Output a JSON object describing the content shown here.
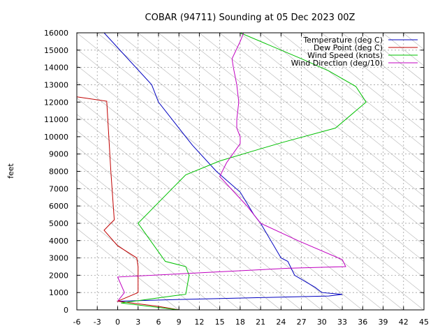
{
  "chart_data": {
    "type": "line",
    "title": "COBAR (94711) Sounding at 05 Dec 2023 00Z",
    "xlabel": "",
    "ylabel": "feet",
    "xlim": [
      -6,
      45
    ],
    "ylim": [
      0,
      16000
    ],
    "x_ticks": [
      -6,
      -3,
      0,
      3,
      6,
      9,
      12,
      15,
      18,
      21,
      24,
      27,
      30,
      33,
      36,
      39,
      42,
      45
    ],
    "y_ticks": [
      0,
      1000,
      2000,
      3000,
      4000,
      5000,
      6000,
      7000,
      8000,
      9000,
      10000,
      11000,
      12000,
      13000,
      14000,
      15000,
      16000
    ],
    "grid": true,
    "legend_position": "top-right",
    "series": [
      {
        "name": "Temperature (deg C)",
        "color": "#0000c0",
        "points": [
          [
            0,
            500
          ],
          [
            9,
            600
          ],
          [
            20,
            700
          ],
          [
            31,
            800
          ],
          [
            33,
            900
          ],
          [
            30,
            1000
          ],
          [
            29,
            1300
          ],
          [
            26,
            2000
          ],
          [
            25,
            2800
          ],
          [
            24,
            3000
          ],
          [
            21,
            5000
          ],
          [
            20,
            5500
          ],
          [
            18,
            6800
          ],
          [
            14.5,
            8000
          ],
          [
            11,
            9500
          ],
          [
            10,
            10000
          ],
          [
            6,
            12000
          ],
          [
            5,
            13000
          ],
          [
            -2,
            16000
          ]
        ]
      },
      {
        "name": "Dew Point (deg C)",
        "color": "#c00000",
        "points": [
          [
            9,
            0
          ],
          [
            6,
            200
          ],
          [
            0,
            500
          ],
          [
            3,
            1000
          ],
          [
            3,
            2000
          ],
          [
            3,
            2500
          ],
          [
            2.8,
            3000
          ],
          [
            0,
            3700
          ],
          [
            -2,
            4600
          ],
          [
            -1,
            5000
          ],
          [
            -0.5,
            5200
          ],
          [
            -1,
            8000
          ],
          [
            -1.6,
            12000
          ],
          [
            -1.6,
            12050
          ],
          [
            -6,
            12300
          ]
        ]
      },
      {
        "name": "Wind Speed (knots)",
        "color": "#00c000",
        "points": [
          [
            9,
            0
          ],
          [
            0.5,
            400
          ],
          [
            8,
            800
          ],
          [
            10,
            900
          ],
          [
            10.5,
            2000
          ],
          [
            10,
            2500
          ],
          [
            7,
            2800
          ],
          [
            3,
            5000
          ],
          [
            10,
            7800
          ],
          [
            15,
            8600
          ],
          [
            21,
            9300
          ],
          [
            24.5,
            9700
          ],
          [
            32,
            10500
          ],
          [
            36.5,
            12000
          ],
          [
            35,
            12900
          ],
          [
            31,
            13800
          ],
          [
            27,
            14500
          ],
          [
            18,
            16000
          ]
        ]
      },
      {
        "name": "Wind Direction (deg/10)",
        "color": "#c000c0",
        "points": [
          [
            0,
            500
          ],
          [
            1,
            1000
          ],
          [
            0,
            1900
          ],
          [
            25,
            2400
          ],
          [
            33.5,
            2500
          ],
          [
            33,
            2900
          ],
          [
            26.5,
            4000
          ],
          [
            21,
            5000
          ],
          [
            19,
            6000
          ],
          [
            15,
            7700
          ],
          [
            16,
            8500
          ],
          [
            18,
            9600
          ],
          [
            18,
            10000
          ],
          [
            17.5,
            10500
          ],
          [
            17.5,
            11000
          ],
          [
            17.8,
            12000
          ],
          [
            17.5,
            13000
          ],
          [
            17,
            14000
          ],
          [
            16.8,
            14500
          ],
          [
            18,
            15500
          ],
          [
            18.5,
            16000
          ]
        ]
      }
    ]
  }
}
